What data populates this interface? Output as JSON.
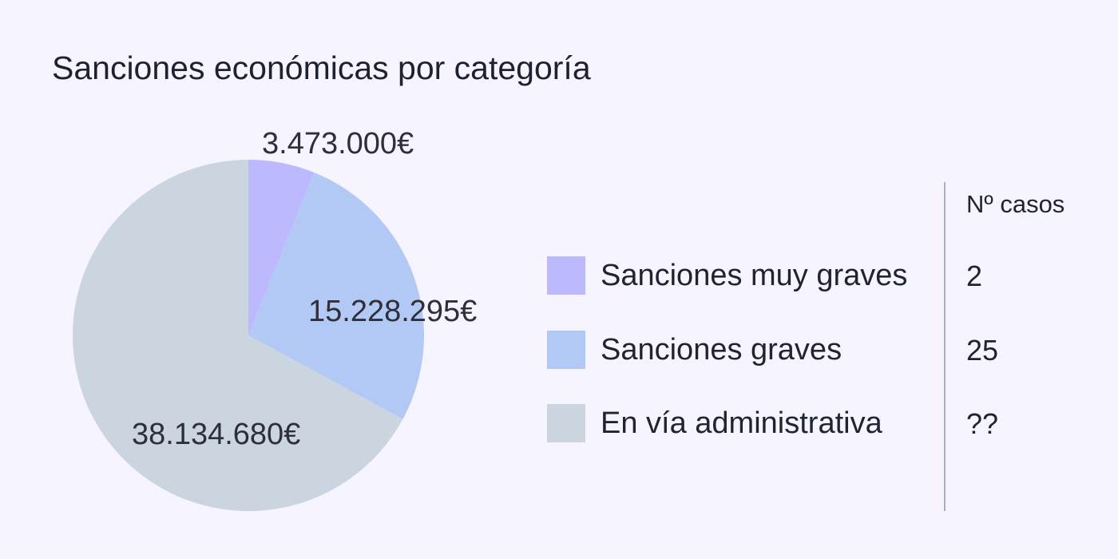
{
  "chart_data": {
    "type": "pie",
    "title": "Sanciones económicas por categoría",
    "categories": [
      "Sanciones muy graves",
      "Sanciones graves",
      "En vía administrativa"
    ],
    "values": [
      3473000,
      15228295,
      38134680
    ],
    "slice_labels": [
      "3.473.000€",
      "15.228.295€",
      "38.134.680€"
    ],
    "colors": [
      "#bdb9ff",
      "#b3c9f5",
      "#cbd5df"
    ],
    "start_angle_deg": 0,
    "direction": "clockwise",
    "legend_position": "right",
    "table": {
      "header": "Nº casos",
      "counts": [
        "2",
        "25",
        "??"
      ]
    }
  }
}
